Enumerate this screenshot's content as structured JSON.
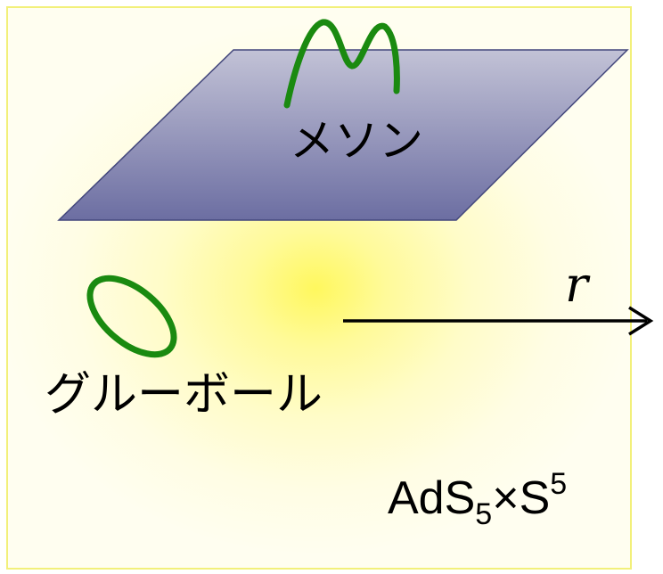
{
  "labels": {
    "meson": "メソン",
    "glueball": "グルーボール",
    "axis_r": "r",
    "space": {
      "base1": "AdS",
      "sub": "5",
      "cross": "×",
      "base2": "S",
      "sup": "5"
    }
  },
  "colors": {
    "string": "#1a8a10",
    "brane_top": "#c2c2d6",
    "brane_bottom": "#6c6ea2",
    "brane_edge": "#43477c",
    "axis": "#000000",
    "glow": "#fff85e"
  }
}
